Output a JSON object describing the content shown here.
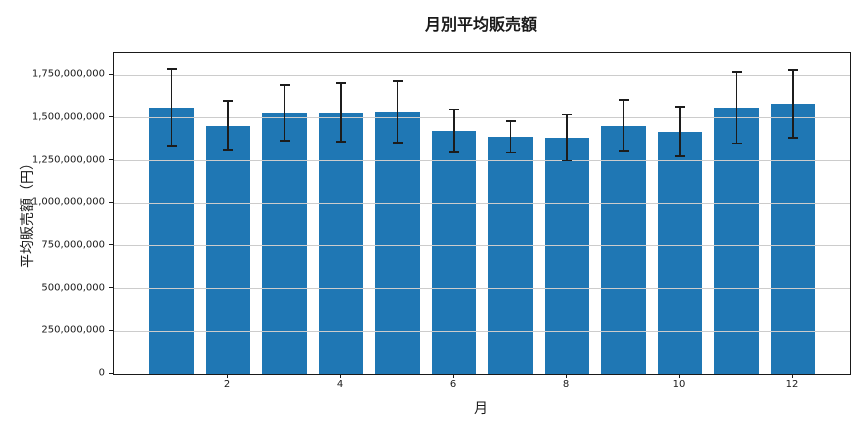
{
  "chart_data": {
    "type": "bar",
    "title": "月別平均販売額",
    "xlabel": "月",
    "ylabel": "平均販売額（円）",
    "categories": [
      1,
      2,
      3,
      4,
      5,
      6,
      7,
      8,
      9,
      10,
      11,
      12
    ],
    "values": [
      1560000000,
      1455000000,
      1530000000,
      1530000000,
      1535000000,
      1425000000,
      1390000000,
      1385000000,
      1455000000,
      1420000000,
      1560000000,
      1580000000
    ],
    "errors": [
      230000000,
      150000000,
      170000000,
      178000000,
      188000000,
      130000000,
      98000000,
      140000000,
      155000000,
      148000000,
      215000000,
      205000000
    ],
    "ylim": [
      0,
      1880000000
    ],
    "yticks": {
      "values": [
        0,
        250000000,
        500000000,
        750000000,
        1000000000,
        1250000000,
        1500000000,
        1750000000
      ],
      "labels": [
        "0",
        "250,000,000",
        "500,000,000",
        "750,000,000",
        "1,000,000,000",
        "1,250,000,000",
        "1,500,000,000",
        "1,750,000,000"
      ]
    },
    "xticks": {
      "values": [
        2,
        4,
        6,
        8,
        10,
        12
      ],
      "labels": [
        "2",
        "4",
        "6",
        "8",
        "10",
        "12"
      ]
    },
    "grid": true,
    "legend": "none",
    "colors": {
      "bar": "#1f77b4",
      "error": "#1c1c1c",
      "grid": "#cccccc",
      "spine": "#1a1a1a",
      "text": "#1a1a1a"
    }
  }
}
